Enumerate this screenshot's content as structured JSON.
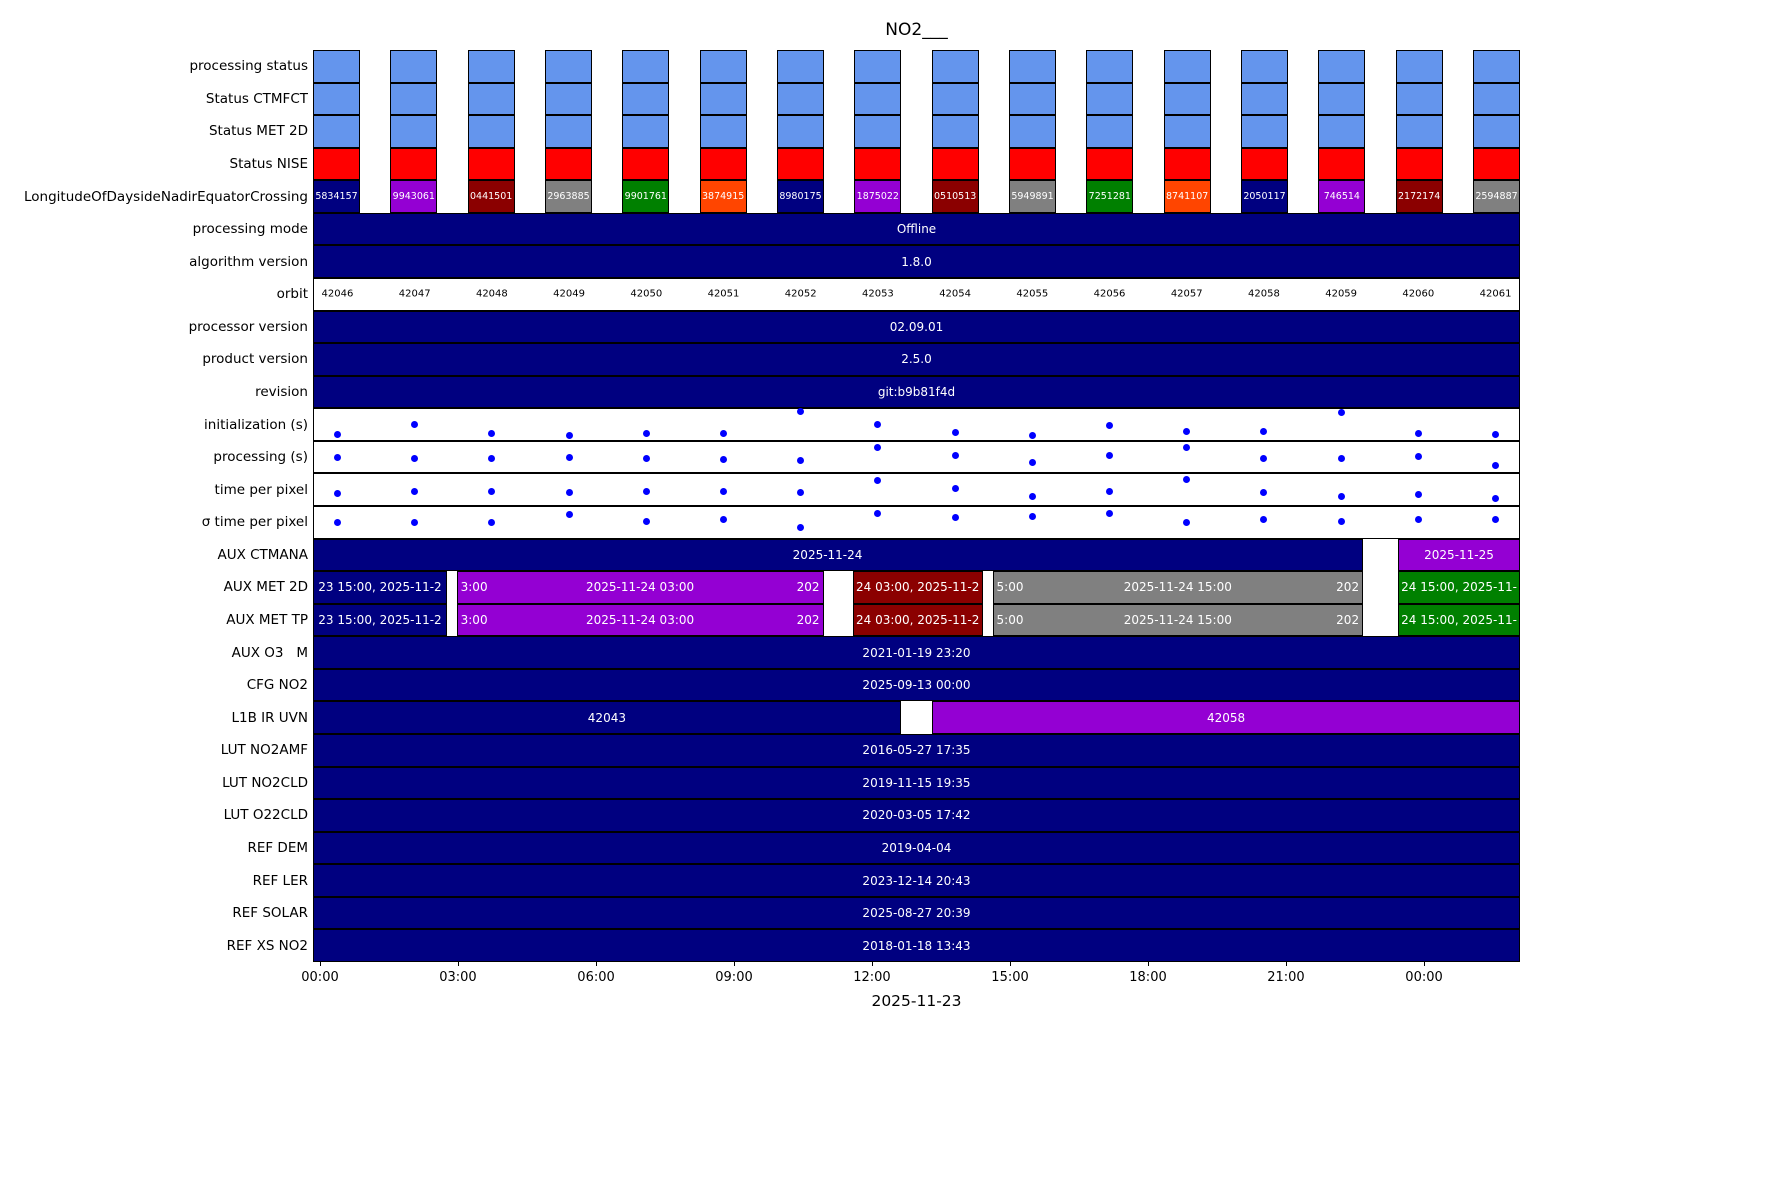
{
  "title": "NO2___",
  "xlabel": "2025-11-23",
  "chart_data": {
    "type": "heatmap",
    "title": "NO2___",
    "xlabel": "2025-11-23",
    "x_ticks": [
      "00:00",
      "03:00",
      "06:00",
      "09:00",
      "12:00",
      "15:00",
      "18:00",
      "21:00",
      "00:00"
    ],
    "grid": false,
    "legend": "none",
    "orbits": [
      "42046",
      "42047",
      "42048",
      "42049",
      "42050",
      "42051",
      "42052",
      "42053",
      "42054",
      "42055",
      "42056",
      "42057",
      "42058",
      "42059",
      "42060",
      "42061"
    ],
    "colors": {
      "status_blue": "#6495ED",
      "status_red": "#FF0000",
      "bar_navy": "#000080",
      "violet": "#9400D3",
      "dark_red": "#8B0000",
      "gray": "#808080",
      "green": "#008000",
      "orange": "#FF4500",
      "dot_blue": "#0000FF"
    },
    "rows": [
      {
        "label": "processing status",
        "kind": "blocks",
        "block_color": "#6495ED"
      },
      {
        "label": "Status CTMFCT",
        "kind": "blocks",
        "block_color": "#6495ED"
      },
      {
        "label": "Status MET 2D",
        "kind": "blocks",
        "block_color": "#6495ED"
      },
      {
        "label": "Status NISE",
        "kind": "blocks",
        "block_color": "#FF0000"
      },
      {
        "label": "LongitudeOfDaysideNadirEquatorCrossing",
        "kind": "blocks",
        "block_colors": [
          "#000080",
          "#9400D3",
          "#8B0000",
          "#808080",
          "#008000",
          "#FF4500",
          "#000080",
          "#9400D3",
          "#8B0000",
          "#808080",
          "#008000",
          "#FF4500",
          "#000080",
          "#9400D3",
          "#8B0000",
          "#808080"
        ],
        "block_texts": [
          "5834157",
          "9943061",
          "0441501",
          "2963885",
          "9901761",
          "3874915",
          "8980175",
          "1875022",
          "0510513",
          "5949891",
          "7251281",
          "8741107",
          "2050117",
          "746514",
          "2172174",
          "2594887"
        ]
      },
      {
        "label": "processing mode",
        "kind": "bar",
        "text": "Offline"
      },
      {
        "label": "algorithm version",
        "kind": "bar",
        "text": "1.8.0"
      },
      {
        "label": "orbit",
        "kind": "values",
        "values": [
          "42046",
          "42047",
          "42048",
          "42049",
          "42050",
          "42051",
          "42052",
          "42053",
          "42054",
          "42055",
          "42056",
          "42057",
          "42058",
          "42059",
          "42060",
          "42061"
        ]
      },
      {
        "label": "processor version",
        "kind": "bar",
        "text": "02.09.01"
      },
      {
        "label": "product version",
        "kind": "bar",
        "text": "2.5.0"
      },
      {
        "label": "revision",
        "kind": "bar",
        "text": "git:b9b81f4d"
      },
      {
        "label": "initialization (s)",
        "kind": "scatter",
        "points": [
          0.84,
          0.5,
          0.78,
          0.86,
          0.8,
          0.8,
          0.08,
          0.5,
          0.76,
          0.86,
          0.52,
          0.74,
          0.74,
          0.1,
          0.78,
          0.82
        ]
      },
      {
        "label": "processing (s)",
        "kind": "scatter",
        "points": [
          0.5,
          0.55,
          0.55,
          0.5,
          0.55,
          0.58,
          0.62,
          0.18,
          0.45,
          0.68,
          0.45,
          0.2,
          0.55,
          0.55,
          0.48,
          0.78
        ]
      },
      {
        "label": "time per pixel",
        "kind": "scatter",
        "points": [
          0.62,
          0.56,
          0.56,
          0.6,
          0.56,
          0.56,
          0.6,
          0.2,
          0.45,
          0.72,
          0.56,
          0.16,
          0.6,
          0.72,
          0.66,
          0.78
        ]
      },
      {
        "label": "σ time per pixel",
        "kind": "scatter",
        "points": [
          0.5,
          0.5,
          0.5,
          0.26,
          0.48,
          0.4,
          0.66,
          0.22,
          0.35,
          0.3,
          0.2,
          0.5,
          0.42,
          0.48,
          0.42,
          0.42
        ]
      },
      {
        "label": "AUX CTMANA",
        "kind": "segments",
        "segments": [
          {
            "color": "#000080",
            "from": 0,
            "to": 87.0,
            "texts": [
              {
                "p": 49,
                "t": "2025-11-24"
              }
            ]
          },
          {
            "color": "#9400D3",
            "from": 89.9,
            "to": 100,
            "texts": [
              {
                "p": 50,
                "t": "2025-11-25"
              }
            ]
          }
        ]
      },
      {
        "label": "AUX MET 2D",
        "kind": "segments",
        "segments": [
          {
            "color": "#000080",
            "from": 0,
            "to": 11.1,
            "texts": [
              {
                "p": 50,
                "t": "23 15:00, 2025-11-2"
              }
            ]
          },
          {
            "color": "#9400D3",
            "from": 11.9,
            "to": 42.3,
            "texts": [
              {
                "p": 0,
                "t": "3:00"
              },
              {
                "p": 50,
                "t": "2025-11-24 03:00"
              },
              {
                "p": 100,
                "t": "202"
              }
            ]
          },
          {
            "color": "#8B0000",
            "from": 44.7,
            "to": 55.5,
            "texts": [
              {
                "p": 50,
                "t": "24 03:00, 2025-11-2"
              }
            ]
          },
          {
            "color": "#808080",
            "from": 56.3,
            "to": 87.0,
            "texts": [
              {
                "p": 0,
                "t": "5:00"
              },
              {
                "p": 50,
                "t": "2025-11-24 15:00"
              },
              {
                "p": 100,
                "t": "202"
              }
            ]
          },
          {
            "color": "#008000",
            "from": 89.9,
            "to": 100,
            "texts": [
              {
                "p": 50,
                "t": "24 15:00, 2025-11-"
              }
            ]
          }
        ]
      },
      {
        "label": "AUX MET TP",
        "kind": "segments",
        "segments": [
          {
            "color": "#000080",
            "from": 0,
            "to": 11.1,
            "texts": [
              {
                "p": 50,
                "t": "23 15:00, 2025-11-2"
              }
            ]
          },
          {
            "color": "#9400D3",
            "from": 11.9,
            "to": 42.3,
            "texts": [
              {
                "p": 0,
                "t": "3:00"
              },
              {
                "p": 50,
                "t": "2025-11-24 03:00"
              },
              {
                "p": 100,
                "t": "202"
              }
            ]
          },
          {
            "color": "#8B0000",
            "from": 44.7,
            "to": 55.5,
            "texts": [
              {
                "p": 50,
                "t": "24 03:00, 2025-11-2"
              }
            ]
          },
          {
            "color": "#808080",
            "from": 56.3,
            "to": 87.0,
            "texts": [
              {
                "p": 0,
                "t": "5:00"
              },
              {
                "p": 50,
                "t": "2025-11-24 15:00"
              },
              {
                "p": 100,
                "t": "202"
              }
            ]
          },
          {
            "color": "#008000",
            "from": 89.9,
            "to": 100,
            "texts": [
              {
                "p": 50,
                "t": "24 15:00, 2025-11-"
              }
            ]
          }
        ]
      },
      {
        "label": "AUX O3   M",
        "kind": "bar",
        "text": "2021-01-19 23:20"
      },
      {
        "label": "CFG NO2",
        "kind": "bar",
        "text": "2025-09-13 00:00"
      },
      {
        "label": "L1B IR UVN",
        "kind": "segments",
        "segments": [
          {
            "color": "#000080",
            "from": 0,
            "to": 48.7,
            "texts": [
              {
                "p": 50,
                "t": "42043"
              }
            ]
          },
          {
            "color": "#9400D3",
            "from": 51.3,
            "to": 100,
            "texts": [
              {
                "p": 50,
                "t": "42058"
              }
            ]
          }
        ]
      },
      {
        "label": "LUT NO2AMF",
        "kind": "bar",
        "text": "2016-05-27 17:35"
      },
      {
        "label": "LUT NO2CLD",
        "kind": "bar",
        "text": "2019-11-15 19:35"
      },
      {
        "label": "LUT O22CLD",
        "kind": "bar",
        "text": "2020-03-05 17:42"
      },
      {
        "label": "REF DEM",
        "kind": "bar",
        "text": "2019-04-04"
      },
      {
        "label": "REF LER",
        "kind": "bar",
        "text": "2023-12-14 20:43"
      },
      {
        "label": "REF SOLAR",
        "kind": "bar",
        "text": "2025-08-27 20:39"
      },
      {
        "label": "REF XS NO2",
        "kind": "bar",
        "text": "2018-01-18 13:43"
      }
    ]
  }
}
